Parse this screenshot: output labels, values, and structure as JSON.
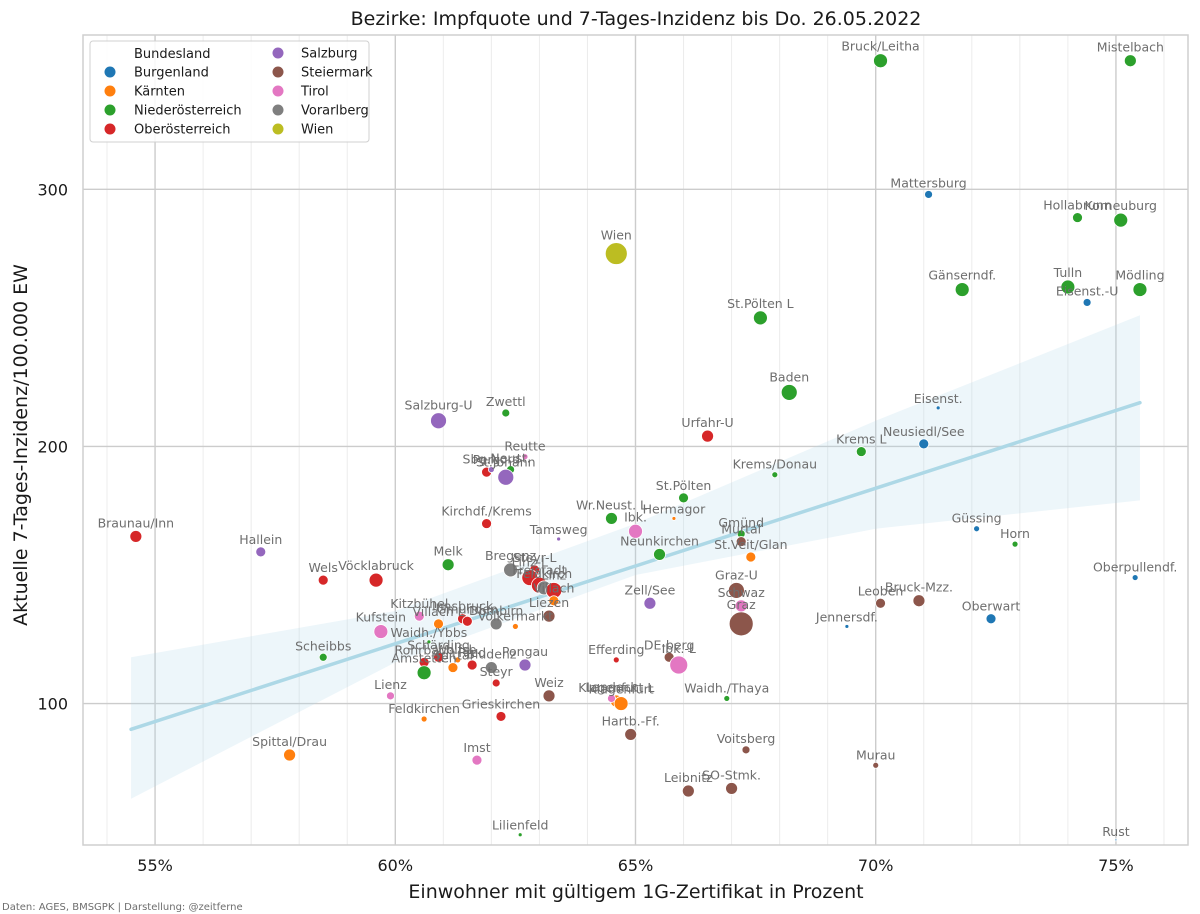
{
  "chart_data": {
    "type": "scatter",
    "title": "Bezirke: Impfquote und 7-Tages-Inzidenz bis Do. 26.05.2022",
    "xlabel": "Einwohner mit gültigem 1G-Zertifikat in Prozent",
    "ylabel": "Aktuelle 7-Tages-Inzidenz/100.000 EW",
    "xlim": [
      53.5,
      76.5
    ],
    "ylim": [
      45,
      360
    ],
    "x_ticks": [
      55,
      60,
      65,
      70,
      75
    ],
    "x_tick_labels": [
      "55%",
      "60%",
      "65%",
      "70%",
      "75%"
    ],
    "y_ticks": [
      100,
      200,
      300
    ],
    "y_tick_labels": [
      "100",
      "200",
      "300"
    ],
    "grid": true,
    "legend": {
      "title": "Bundesland",
      "placement": "top-left",
      "entries": [
        {
          "name": "Burgenland",
          "color": "#1f77b4"
        },
        {
          "name": "Kärnten",
          "color": "#ff7f0e"
        },
        {
          "name": "Niederösterreich",
          "color": "#2ca02c"
        },
        {
          "name": "Oberösterreich",
          "color": "#d62728"
        },
        {
          "name": "Salzburg",
          "color": "#9467bd"
        },
        {
          "name": "Steiermark",
          "color": "#8c564b"
        },
        {
          "name": "Tirol",
          "color": "#e377c2"
        },
        {
          "name": "Vorarlberg",
          "color": "#7f7f7f"
        },
        {
          "name": "Wien",
          "color": "#bcbd22"
        }
      ]
    },
    "regression": {
      "color": "#add8e6",
      "line": [
        [
          54.5,
          90
        ],
        [
          75.5,
          217
        ]
      ],
      "ci_upper": [
        [
          54.5,
          118
        ],
        [
          60,
          136
        ],
        [
          65,
          170
        ],
        [
          70,
          210
        ],
        [
          75.5,
          251
        ]
      ],
      "ci_lower": [
        [
          54.5,
          63
        ],
        [
          60,
          116
        ],
        [
          65,
          150
        ],
        [
          70,
          168
        ],
        [
          75.5,
          179
        ]
      ]
    },
    "points": [
      {
        "label": "Bruck/Leitha",
        "state": "Niederösterreich",
        "x": 70.1,
        "y": 350,
        "s": 7
      },
      {
        "label": "Mistelbach",
        "state": "Niederösterreich",
        "x": 75.3,
        "y": 350,
        "s": 6
      },
      {
        "label": "Mattersburg",
        "state": "Burgenland",
        "x": 71.1,
        "y": 298,
        "s": 4
      },
      {
        "label": "Hollabrunn",
        "state": "Niederösterreich",
        "x": 74.2,
        "y": 289,
        "s": 5
      },
      {
        "label": "Korneuburg",
        "state": "Niederösterreich",
        "x": 75.1,
        "y": 288,
        "s": 7
      },
      {
        "label": "Wien",
        "state": "Wien",
        "x": 64.6,
        "y": 275,
        "s": 11
      },
      {
        "label": "Gänserndf.",
        "state": "Niederösterreich",
        "x": 71.8,
        "y": 261,
        "s": 7
      },
      {
        "label": "Tulln",
        "state": "Niederösterreich",
        "x": 74.0,
        "y": 262,
        "s": 7
      },
      {
        "label": "Mödling",
        "state": "Niederösterreich",
        "x": 75.5,
        "y": 261,
        "s": 7
      },
      {
        "label": "Eisenst.-U",
        "state": "Burgenland",
        "x": 74.4,
        "y": 256,
        "s": 4
      },
      {
        "label": "St.Pölten L",
        "state": "Niederösterreich",
        "x": 67.6,
        "y": 250,
        "s": 7
      },
      {
        "label": "Baden",
        "state": "Niederösterreich",
        "x": 68.2,
        "y": 221,
        "s": 8
      },
      {
        "label": "Eisenst.",
        "state": "Burgenland",
        "x": 71.3,
        "y": 215,
        "s": 2
      },
      {
        "label": "Salzburg-U",
        "state": "Salzburg",
        "x": 60.9,
        "y": 210,
        "s": 8
      },
      {
        "label": "Zwettl",
        "state": "Niederösterreich",
        "x": 62.3,
        "y": 213,
        "s": 4
      },
      {
        "label": "Urfahr-U",
        "state": "Oberösterreich",
        "x": 66.5,
        "y": 204,
        "s": 6
      },
      {
        "label": "Neusiedl/See",
        "state": "Burgenland",
        "x": 71.0,
        "y": 201,
        "s": 5
      },
      {
        "label": "Krems L",
        "state": "Niederösterreich",
        "x": 69.7,
        "y": 198,
        "s": 5
      },
      {
        "label": "Reutte",
        "state": "Tirol",
        "x": 62.7,
        "y": 196,
        "s": 3
      },
      {
        "label": "Perg",
        "state": "Oberösterreich",
        "x": 61.9,
        "y": 190,
        "s": 5
      },
      {
        "label": "Sbg.Nord",
        "state": "Salzburg",
        "x": 62.0,
        "y": 191,
        "s": 3
      },
      {
        "label": "Neust.",
        "state": "Niederösterreich",
        "x": 62.4,
        "y": 191,
        "s": 4
      },
      {
        "label": "St.Johann",
        "state": "Salzburg",
        "x": 62.3,
        "y": 188,
        "s": 8
      },
      {
        "label": "Krems/Donau",
        "state": "Niederösterreich",
        "x": 67.9,
        "y": 189,
        "s": 3
      },
      {
        "label": "St.Pölten",
        "state": "Niederösterreich",
        "x": 66.0,
        "y": 180,
        "s": 5
      },
      {
        "label": "Braunau/Inn",
        "state": "Oberösterreich",
        "x": 54.6,
        "y": 165,
        "s": 6
      },
      {
        "label": "Kirchdf./Krems",
        "state": "Oberösterreich",
        "x": 61.9,
        "y": 170,
        "s": 5
      },
      {
        "label": "Wr.Neust. L",
        "state": "Niederösterreich",
        "x": 64.5,
        "y": 172,
        "s": 6
      },
      {
        "label": "Hermagor",
        "state": "Kärnten",
        "x": 65.8,
        "y": 172,
        "s": 2
      },
      {
        "label": "Ibk.",
        "state": "Tirol",
        "x": 65.0,
        "y": 167,
        "s": 7
      },
      {
        "label": "Tamsweg",
        "state": "Salzburg",
        "x": 63.4,
        "y": 164,
        "s": 2
      },
      {
        "label": "Gmünd",
        "state": "Niederösterreich",
        "x": 67.2,
        "y": 166,
        "s": 4
      },
      {
        "label": "Murtal",
        "state": "Steiermark",
        "x": 67.2,
        "y": 163,
        "s": 5
      },
      {
        "label": "St.Veit/Glan",
        "state": "Kärnten",
        "x": 67.4,
        "y": 157,
        "s": 5
      },
      {
        "label": "Hallein",
        "state": "Salzburg",
        "x": 57.2,
        "y": 159,
        "s": 5
      },
      {
        "label": "Neunkirchen",
        "state": "Niederösterreich",
        "x": 65.5,
        "y": 158,
        "s": 6
      },
      {
        "label": "Melk",
        "state": "Niederösterreich",
        "x": 61.1,
        "y": 154,
        "s": 6
      },
      {
        "label": "Güssing",
        "state": "Burgenland",
        "x": 72.1,
        "y": 168,
        "s": 3
      },
      {
        "label": "Horn",
        "state": "Niederösterreich",
        "x": 72.9,
        "y": 162,
        "s": 3
      },
      {
        "label": "Bregenz",
        "state": "Vorarlberg",
        "x": 62.4,
        "y": 152,
        "s": 7
      },
      {
        "label": "Steyr-L",
        "state": "Oberösterreich",
        "x": 62.9,
        "y": 152,
        "s": 5
      },
      {
        "label": "Wels",
        "state": "Oberösterreich",
        "x": 58.5,
        "y": 148,
        "s": 5
      },
      {
        "label": "Vöcklabruck",
        "state": "Oberösterreich",
        "x": 59.6,
        "y": 148,
        "s": 7
      },
      {
        "label": "Linz-L",
        "state": "Oberösterreich",
        "x": 62.8,
        "y": 149,
        "s": 8
      },
      {
        "label": "Freistadt",
        "state": "Oberösterreich",
        "x": 63.0,
        "y": 146,
        "s": 8
      },
      {
        "label": "Feldkirch",
        "state": "Vorarlberg",
        "x": 63.1,
        "y": 145,
        "s": 7
      },
      {
        "label": "Linz",
        "state": "Oberösterreich",
        "x": 63.3,
        "y": 144,
        "s": 8
      },
      {
        "label": "Villach",
        "state": "Kärnten",
        "x": 63.3,
        "y": 140,
        "s": 5
      },
      {
        "label": "Oberpullendf.",
        "state": "Burgenland",
        "x": 75.4,
        "y": 149,
        "s": 3
      },
      {
        "label": "Graz-U",
        "state": "Steiermark",
        "x": 67.1,
        "y": 144,
        "s": 8
      },
      {
        "label": "Zell/See",
        "state": "Salzburg",
        "x": 65.3,
        "y": 139,
        "s": 6
      },
      {
        "label": "Schwaz",
        "state": "Tirol",
        "x": 67.2,
        "y": 138,
        "s": 6
      },
      {
        "label": "Leoben",
        "state": "Steiermark",
        "x": 70.1,
        "y": 139,
        "s": 5
      },
      {
        "label": "Bruck-Mzz.",
        "state": "Steiermark",
        "x": 70.9,
        "y": 140,
        "s": 6
      },
      {
        "label": "Oberwart",
        "state": "Burgenland",
        "x": 72.4,
        "y": 133,
        "s": 5
      },
      {
        "label": "Liezen",
        "state": "Steiermark",
        "x": 63.2,
        "y": 134,
        "s": 6
      },
      {
        "label": "Kitzbühel",
        "state": "Tirol",
        "x": 60.5,
        "y": 134,
        "s": 5
      },
      {
        "label": "Villach L",
        "state": "Kärnten",
        "x": 60.9,
        "y": 131,
        "s": 5
      },
      {
        "label": "Innsbruck",
        "state": "Oberösterreich",
        "x": 61.4,
        "y": 133,
        "s": 5
      },
      {
        "label": "Gmunden",
        "state": "Oberösterreich",
        "x": 61.5,
        "y": 132,
        "s": 5
      },
      {
        "label": "Dornbirn",
        "state": "Vorarlberg",
        "x": 62.1,
        "y": 131,
        "s": 6
      },
      {
        "label": "Völkermarkt",
        "state": "Kärnten",
        "x": 62.5,
        "y": 130,
        "s": 3
      },
      {
        "label": "Kufstein",
        "state": "Tirol",
        "x": 59.7,
        "y": 128,
        "s": 7
      },
      {
        "label": "Graz",
        "state": "Steiermark",
        "x": 67.2,
        "y": 131,
        "s": 12
      },
      {
        "label": "Jennersdf.",
        "state": "Burgenland",
        "x": 69.4,
        "y": 130,
        "s": 2
      },
      {
        "label": "Waidh./Ybbs",
        "state": "Niederösterreich",
        "x": 60.7,
        "y": 124,
        "s": 2
      },
      {
        "label": "Rohrbach",
        "state": "Oberösterreich",
        "x": 60.6,
        "y": 116,
        "s": 5
      },
      {
        "label": "Schärding",
        "state": "Oberösterreich",
        "x": 60.9,
        "y": 118,
        "s": 5
      },
      {
        "label": "Wolfsb.",
        "state": "Kärnten",
        "x": 61.3,
        "y": 117,
        "s": 3
      },
      {
        "label": "Ried",
        "state": "Oberösterreich",
        "x": 61.6,
        "y": 115,
        "s": 5
      },
      {
        "label": "Bludenz",
        "state": "Vorarlberg",
        "x": 62.0,
        "y": 114,
        "s": 6
      },
      {
        "label": "Pongau",
        "state": "Salzburg",
        "x": 62.7,
        "y": 115,
        "s": 6
      },
      {
        "label": "Scheibbs",
        "state": "Niederösterreich",
        "x": 58.5,
        "y": 118,
        "s": 4
      },
      {
        "label": "Amstetten",
        "state": "Niederösterreich",
        "x": 60.6,
        "y": 112,
        "s": 7
      },
      {
        "label": "Spittal",
        "state": "Kärnten",
        "x": 61.2,
        "y": 114,
        "s": 5
      },
      {
        "label": "Efferding",
        "state": "Oberösterreich",
        "x": 64.6,
        "y": 117,
        "s": 3
      },
      {
        "label": "DE-berg",
        "state": "Steiermark",
        "x": 65.7,
        "y": 118,
        "s": 5
      },
      {
        "label": "Ibk.-L",
        "state": "Tirol",
        "x": 65.9,
        "y": 115,
        "s": 9
      },
      {
        "label": "Steyr",
        "state": "Oberösterreich",
        "x": 62.1,
        "y": 108,
        "s": 4
      },
      {
        "label": "Lienz",
        "state": "Tirol",
        "x": 59.9,
        "y": 103,
        "s": 4
      },
      {
        "label": "Weiz",
        "state": "Steiermark",
        "x": 63.2,
        "y": 103,
        "s": 6
      },
      {
        "label": "Klagenfurt L",
        "state": "Kärnten",
        "x": 64.6,
        "y": 101,
        "s": 6
      },
      {
        "label": "Klagenfurt",
        "state": "Kärnten",
        "x": 64.7,
        "y": 100,
        "s": 7
      },
      {
        "label": "Landeck",
        "state": "Tirol",
        "x": 64.5,
        "y": 102,
        "s": 4
      },
      {
        "label": "Waidh./Thaya",
        "state": "Niederösterreich",
        "x": 66.9,
        "y": 102,
        "s": 3
      },
      {
        "label": "Feldkirchen",
        "state": "Kärnten",
        "x": 60.6,
        "y": 94,
        "s": 3
      },
      {
        "label": "Grieskirchen",
        "state": "Oberösterreich",
        "x": 62.2,
        "y": 95,
        "s": 5
      },
      {
        "label": "Hartb.-Ff.",
        "state": "Steiermark",
        "x": 64.9,
        "y": 88,
        "s": 6
      },
      {
        "label": "Spittal/Drau",
        "state": "Kärnten",
        "x": 57.8,
        "y": 80,
        "s": 6
      },
      {
        "label": "Imst",
        "state": "Tirol",
        "x": 61.7,
        "y": 78,
        "s": 5
      },
      {
        "label": "Voitsberg",
        "state": "Steiermark",
        "x": 67.3,
        "y": 82,
        "s": 4
      },
      {
        "label": "Murau",
        "state": "Steiermark",
        "x": 70.0,
        "y": 76,
        "s": 3
      },
      {
        "label": "Leibnitz",
        "state": "Steiermark",
        "x": 66.1,
        "y": 66,
        "s": 6
      },
      {
        "label": "SO-Stmk.",
        "state": "Steiermark",
        "x": 67.0,
        "y": 67,
        "s": 6
      },
      {
        "label": "Lilienfeld",
        "state": "Niederösterreich",
        "x": 62.6,
        "y": 49,
        "s": 2
      },
      {
        "label": "Rust",
        "state": "Burgenland",
        "x": 75.0,
        "y": 47,
        "s": 1
      }
    ]
  },
  "footer": {
    "credit": "Daten: AGES, BMSGPK | Darstellung: @zeitferne"
  }
}
